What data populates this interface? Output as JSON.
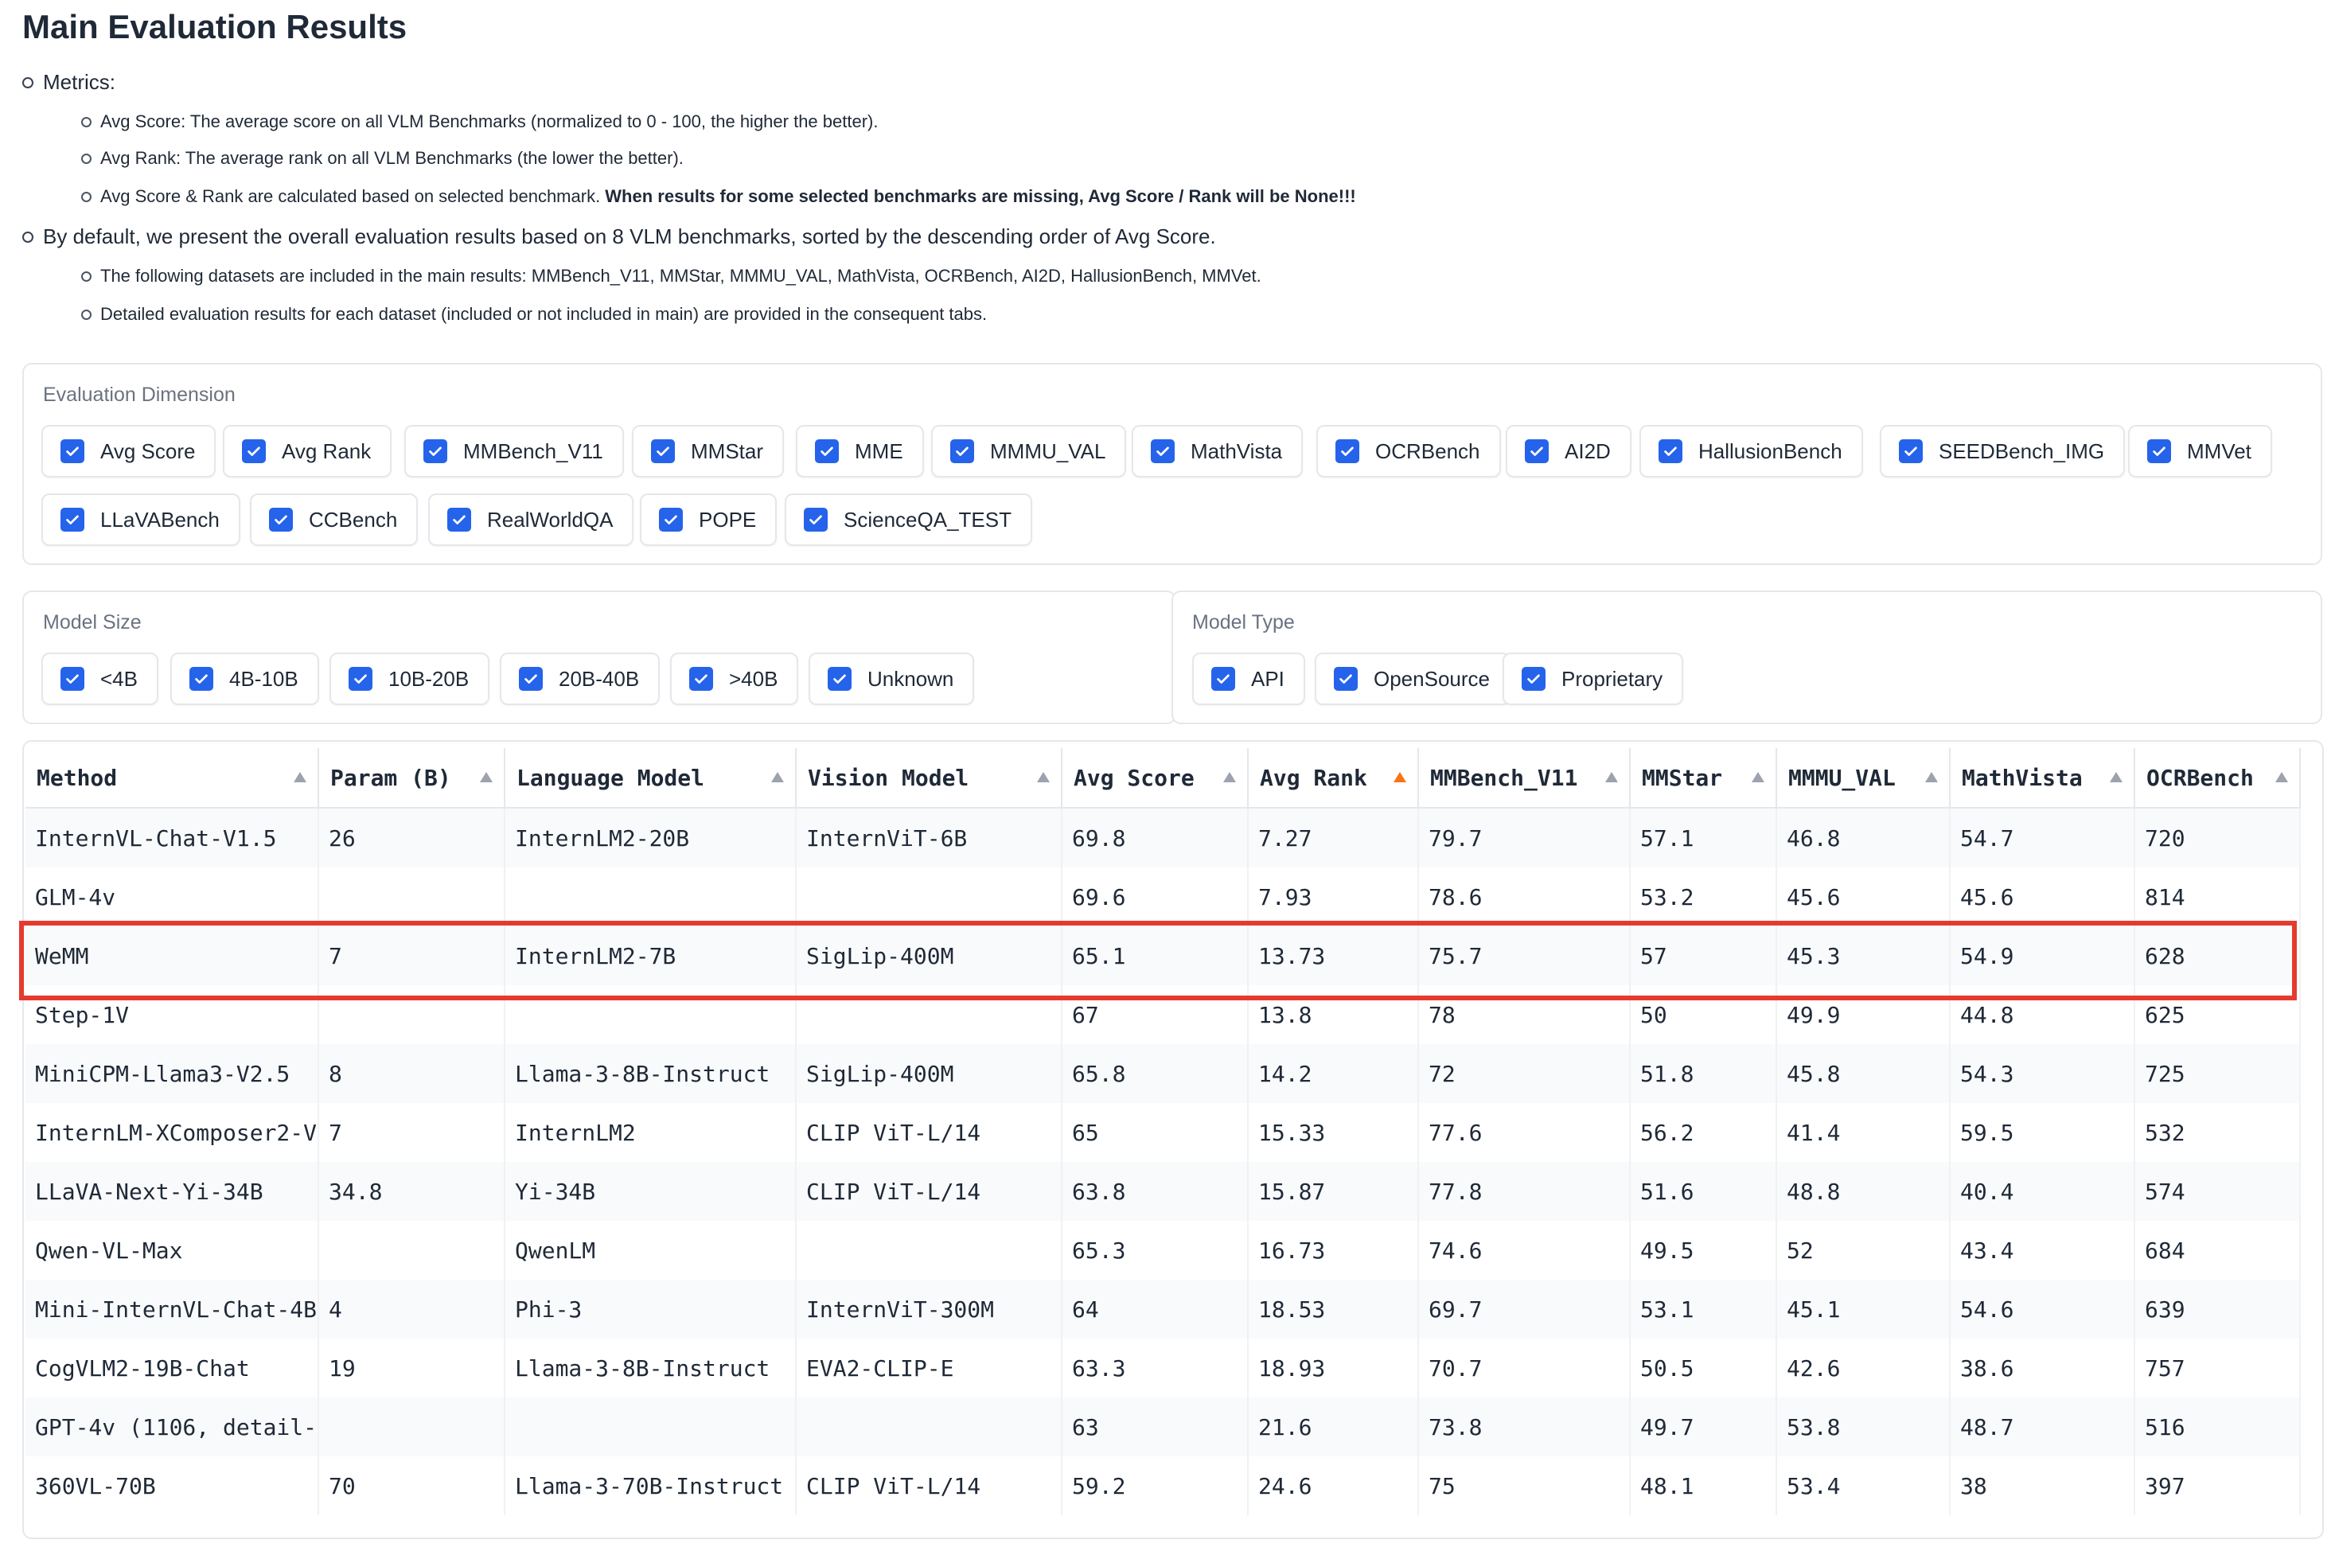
{
  "page": {
    "title": "Main Evaluation Results"
  },
  "notes": {
    "metrics_label": "Metrics:",
    "avg_score": "Avg Score: The average score on all VLM Benchmarks (normalized to 0 - 100, the higher the better).",
    "avg_rank": "Avg Rank: The average rank on all VLM Benchmarks (the lower the better).",
    "calc_prefix": "Avg Score & Rank are calculated based on selected benchmark. ",
    "calc_bold": "When results for some selected benchmarks are missing, Avg Score / Rank will be None!!!",
    "default_text": "By default, we present the overall evaluation results based on 8 VLM benchmarks, sorted by the descending order of Avg Score.",
    "datasets_text": "The following datasets are included in the main results: MMBench_V11, MMStar, MMMU_VAL, MathVista, OCRBench, AI2D, HallusionBench, MMVet.",
    "detailed_text": "Detailed evaluation results for each dataset (included or not included in main) are provided in the consequent tabs."
  },
  "evaluation_dimension": {
    "label": "Evaluation Dimension",
    "items": [
      {
        "label": "Avg Score",
        "checked": true
      },
      {
        "label": "Avg Rank",
        "checked": true
      },
      {
        "label": "MMBench_V11",
        "checked": true
      },
      {
        "label": "MMStar",
        "checked": true
      },
      {
        "label": "MME",
        "checked": true
      },
      {
        "label": "MMMU_VAL",
        "checked": true
      },
      {
        "label": "MathVista",
        "checked": true
      },
      {
        "label": "OCRBench",
        "checked": true
      },
      {
        "label": "AI2D",
        "checked": true
      },
      {
        "label": "HallusionBench",
        "checked": true
      },
      {
        "label": "SEEDBench_IMG",
        "checked": true
      },
      {
        "label": "MMVet",
        "checked": true
      },
      {
        "label": "LLaVABench",
        "checked": true
      },
      {
        "label": "CCBench",
        "checked": true
      },
      {
        "label": "RealWorldQA",
        "checked": true
      },
      {
        "label": "POPE",
        "checked": true
      },
      {
        "label": "ScienceQA_TEST",
        "checked": true
      }
    ]
  },
  "model_size": {
    "label": "Model Size",
    "items": [
      {
        "label": "<4B",
        "checked": true
      },
      {
        "label": "4B-10B",
        "checked": true
      },
      {
        "label": "10B-20B",
        "checked": true
      },
      {
        "label": "20B-40B",
        "checked": true
      },
      {
        "label": ">40B",
        "checked": true
      },
      {
        "label": "Unknown",
        "checked": true
      }
    ]
  },
  "model_type": {
    "label": "Model Type",
    "items": [
      {
        "label": "API",
        "checked": true
      },
      {
        "label": "OpenSource",
        "checked": true
      },
      {
        "label": "Proprietary",
        "checked": true
      }
    ]
  },
  "table": {
    "sorted_column": "Avg Rank",
    "highlighted_row": "WeMM",
    "columns": [
      "Method",
      "Param (B)",
      "Language Model",
      "Vision Model",
      "Avg Score",
      "Avg Rank",
      "MMBench_V11",
      "MMStar",
      "MMMU_VAL",
      "MathVista",
      "OCRBench"
    ],
    "rows": [
      [
        "InternVL-Chat-V1.5",
        "26",
        "InternLM2-20B",
        "InternViT-6B",
        "69.8",
        "7.27",
        "79.7",
        "57.1",
        "46.8",
        "54.7",
        "720"
      ],
      [
        "GLM-4v",
        "",
        "",
        "",
        "69.6",
        "7.93",
        "78.6",
        "53.2",
        "45.6",
        "45.6",
        "814"
      ],
      [
        "WeMM",
        "7",
        "InternLM2-7B",
        "SigLip-400M",
        "65.1",
        "13.73",
        "75.7",
        "57",
        "45.3",
        "54.9",
        "628"
      ],
      [
        "Step-1V",
        "",
        "",
        "",
        "67",
        "13.8",
        "78",
        "50",
        "49.9",
        "44.8",
        "625"
      ],
      [
        "MiniCPM-Llama3-V2.5",
        "8",
        "Llama-3-8B-Instruct",
        "SigLip-400M",
        "65.8",
        "14.2",
        "72",
        "51.8",
        "45.8",
        "54.3",
        "725"
      ],
      [
        "InternLM-XComposer2-V",
        "7",
        "InternLM2",
        "CLIP ViT-L/14",
        "65",
        "15.33",
        "77.6",
        "56.2",
        "41.4",
        "59.5",
        "532"
      ],
      [
        "LLaVA-Next-Yi-34B",
        "34.8",
        "Yi-34B",
        "CLIP ViT-L/14",
        "63.8",
        "15.87",
        "77.8",
        "51.6",
        "48.8",
        "40.4",
        "574"
      ],
      [
        "Qwen-VL-Max",
        "",
        "QwenLM",
        "",
        "65.3",
        "16.73",
        "74.6",
        "49.5",
        "52",
        "43.4",
        "684"
      ],
      [
        "Mini-InternVL-Chat-4B",
        "4",
        "Phi-3",
        "InternViT-300M",
        "64",
        "18.53",
        "69.7",
        "53.1",
        "45.1",
        "54.6",
        "639"
      ],
      [
        "CogVLM2-19B-Chat",
        "19",
        "Llama-3-8B-Instruct",
        "EVA2-CLIP-E",
        "63.3",
        "18.93",
        "70.7",
        "50.5",
        "42.6",
        "38.6",
        "757"
      ],
      [
        "GPT-4v (1106, detail-",
        "",
        "",
        "",
        "63",
        "21.6",
        "73.8",
        "49.7",
        "53.8",
        "48.7",
        "516"
      ],
      [
        "360VL-70B",
        "70",
        "Llama-3-70B-Instruct",
        "CLIP ViT-L/14",
        "59.2",
        "24.6",
        "75",
        "48.1",
        "53.4",
        "38",
        "397"
      ]
    ]
  },
  "colors": {
    "checkbox": "#2563eb",
    "highlight_border": "#e53a2e",
    "active_sort": "#f97316"
  }
}
